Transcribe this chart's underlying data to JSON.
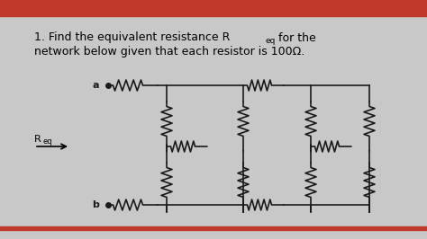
{
  "bg_color": "#c8c8c8",
  "top_bar_color": "#c0392b",
  "text_line1": "1. Find the equivalent resistance R",
  "text_line1_sub": "eq",
  "text_line1_end": " for the",
  "text_line2": "network below given that each resistor is 100Ω.",
  "label_a": "a",
  "label_b": "b",
  "label_req": "R",
  "label_req_sub": "eq",
  "circuit_color": "#1a1a1a",
  "font_size_text": 9,
  "font_size_labels": 8
}
